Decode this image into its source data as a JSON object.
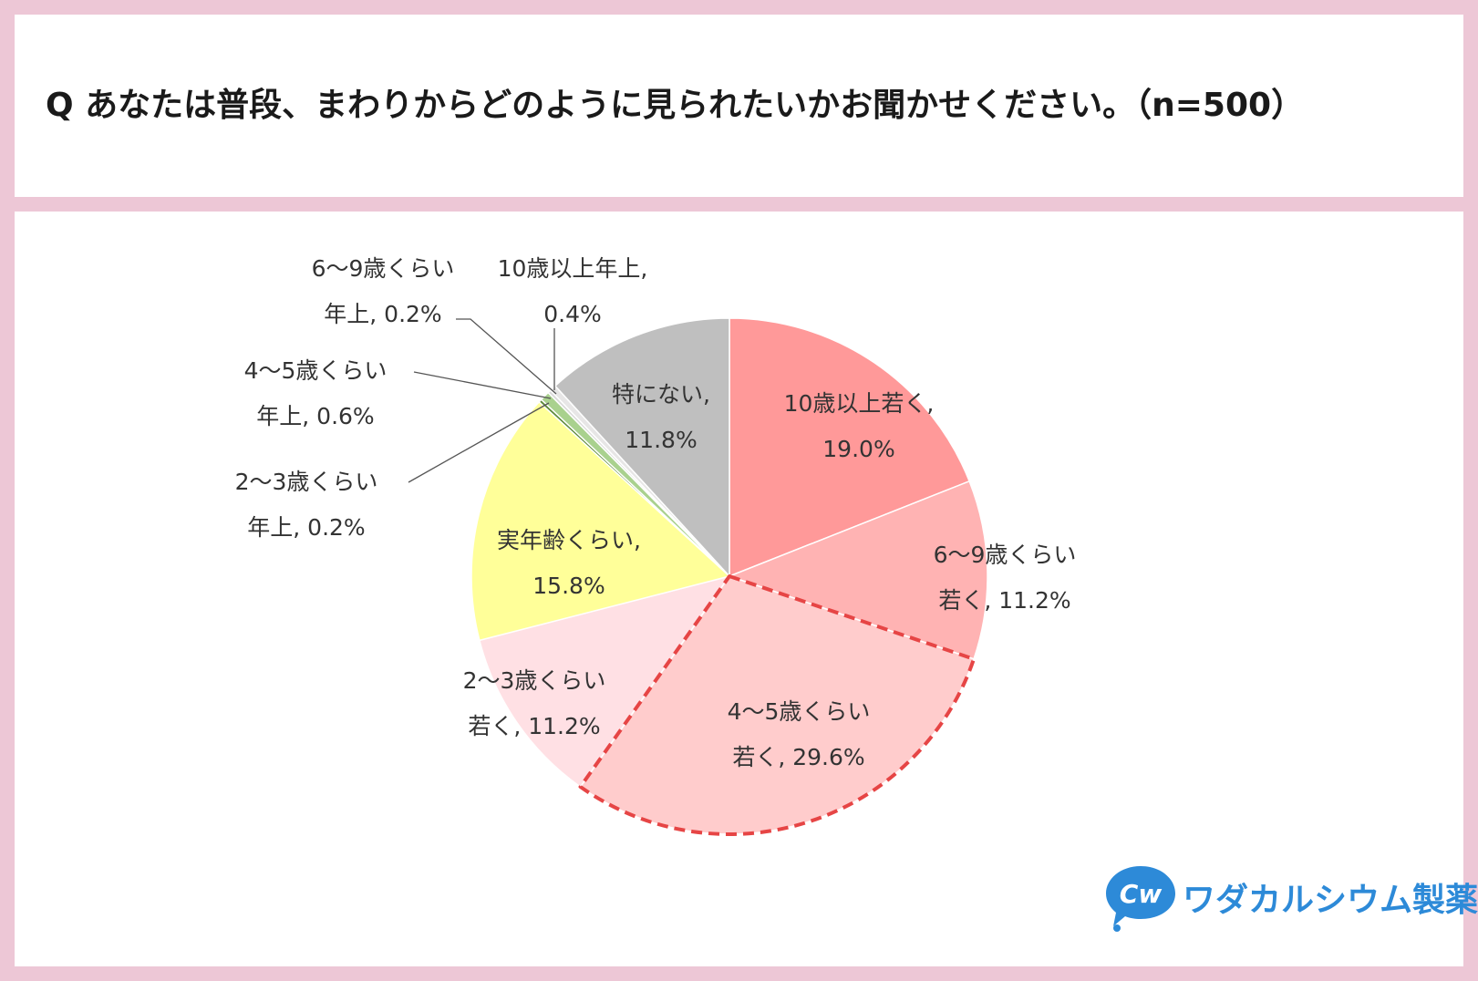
{
  "title": "Q あなたは普段、まわりからどのように見られたいかお聞かせください。（n=500）",
  "brand": {
    "name": "ワダカルシウム製薬",
    "logo_icon": "speech-bubble-cw-logo",
    "color": "#2d8ad8"
  },
  "chart_data": {
    "type": "pie",
    "start": "12 o'clock",
    "direction": "clockwise",
    "slices": [
      {
        "label": "10歳以上若く",
        "value": 19.0,
        "color": "#ff9999",
        "line1": "10歳以上若く,",
        "line2": "19.0%"
      },
      {
        "label": "6〜9歳くらい若く",
        "value": 11.2,
        "color": "#ffb3b3",
        "line1": "6〜9歳くらい",
        "line2": "若く, 11.2%"
      },
      {
        "label": "4〜5歳くらい若く",
        "value": 29.6,
        "color": "#ffcccc",
        "line1": "4〜5歳くらい",
        "line2": "若く, 29.6%",
        "highlight": true
      },
      {
        "label": "2〜3歳くらい若く",
        "value": 11.2,
        "color": "#ffe0e4",
        "line1": "2〜3歳くらい",
        "line2": "若く, 11.2%"
      },
      {
        "label": "実年齢くらい",
        "value": 15.8,
        "color": "#ffff99",
        "line1": "実年齢くらい,",
        "line2": "15.8%"
      },
      {
        "label": "2〜3歳くらい年上",
        "value": 0.2,
        "color": "#5e8a3a",
        "line1": "2〜3歳くらい",
        "line2": "年上, 0.2%"
      },
      {
        "label": "4〜5歳くらい年上",
        "value": 0.6,
        "color": "#a9d18e",
        "line1": "4〜5歳くらい",
        "line2": "年上, 0.6%"
      },
      {
        "label": "6〜9歳くらい年上",
        "value": 0.2,
        "color": "#d9d9d9",
        "line1": "6〜9歳くらい",
        "line2": "年上, 0.2%"
      },
      {
        "label": "10歳以上年上",
        "value": 0.4,
        "color": "#e7e6e6",
        "line1": "10歳以上年上,",
        "line2": "0.4%"
      },
      {
        "label": "特にない",
        "value": 11.8,
        "color": "#bfbfbf",
        "line1": "特にない,",
        "line2": "11.8%"
      }
    ],
    "highlight_border_color": "#e64545"
  }
}
